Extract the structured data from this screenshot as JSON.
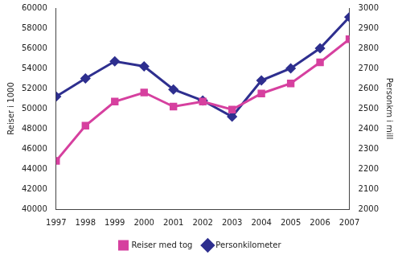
{
  "chart_data": {
    "type": "line",
    "categories": [
      "1997",
      "1998",
      "1999",
      "2000",
      "2001",
      "2002",
      "2003",
      "2004",
      "2005",
      "2006",
      "2007"
    ],
    "series": [
      {
        "name": "Reiser med tog",
        "color": "#d6409f",
        "marker": "square",
        "line_style": "solid",
        "values": [
          44800,
          48300,
          50700,
          51600,
          50200,
          50700,
          49900,
          51500,
          52500,
          54600,
          56900
        ]
      },
      {
        "name": "Personkilometer",
        "color": "#2e2f8f",
        "marker": "diamond",
        "line_style": "solid",
        "axis": "y2",
        "values": [
          2560,
          2650,
          2735,
          2710,
          2595,
          2540,
          2460,
          2640,
          2700,
          2800,
          2955
        ]
      }
    ],
    "y_label": "Reiser i 1000",
    "y2_label": "Personkm i mill",
    "ylim": [
      40000,
      60000
    ],
    "yticks": [
      40000,
      42000,
      44000,
      46000,
      48000,
      50000,
      52000,
      54000,
      56000,
      58000,
      60000
    ],
    "y2lim": [
      2000,
      3000
    ],
    "y2ticks": [
      2000,
      2100,
      2200,
      2300,
      2400,
      2500,
      2600,
      2700,
      2800,
      2900,
      3000
    ],
    "grid": false,
    "legend": "bottom"
  }
}
